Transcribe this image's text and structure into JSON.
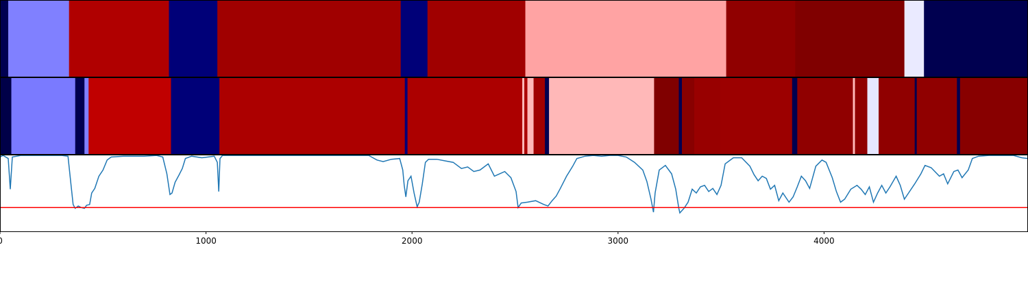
{
  "chart_data": {
    "type": "heatmap",
    "xlim": [
      0,
      4990
    ],
    "x_ticks": [
      "0",
      "1000",
      "2000",
      "3000",
      "4000"
    ],
    "x_tick_values": [
      0,
      1000,
      2000,
      3000,
      4000
    ],
    "colormap": "seismic",
    "rows": [
      {
        "segments": [
          {
            "start": 0,
            "end": 40,
            "color": "#000050"
          },
          {
            "start": 40,
            "end": 335,
            "color": "#8080ff"
          },
          {
            "start": 335,
            "end": 820,
            "color": "#b00000"
          },
          {
            "start": 820,
            "end": 1055,
            "color": "#000078"
          },
          {
            "start": 1055,
            "end": 1945,
            "color": "#a00000"
          },
          {
            "start": 1945,
            "end": 2075,
            "color": "#000078"
          },
          {
            "start": 2075,
            "end": 2550,
            "color": "#a00000"
          },
          {
            "start": 2550,
            "end": 3525,
            "color": "#ffa3a3"
          },
          {
            "start": 3525,
            "end": 3860,
            "color": "#900000"
          },
          {
            "start": 3860,
            "end": 4390,
            "color": "#800000"
          },
          {
            "start": 4390,
            "end": 4485,
            "color": "#eaeaff"
          },
          {
            "start": 4485,
            "end": 4990,
            "color": "#000050"
          }
        ]
      },
      {
        "segments": [
          {
            "start": 0,
            "end": 55,
            "color": "#000048"
          },
          {
            "start": 55,
            "end": 365,
            "color": "#7a7aff"
          },
          {
            "start": 365,
            "end": 410,
            "color": "#000050"
          },
          {
            "start": 410,
            "end": 430,
            "color": "#8080ff"
          },
          {
            "start": 430,
            "end": 830,
            "color": "#c00000"
          },
          {
            "start": 830,
            "end": 1065,
            "color": "#000078"
          },
          {
            "start": 1065,
            "end": 1965,
            "color": "#ac0000"
          },
          {
            "start": 1965,
            "end": 1978,
            "color": "#000078"
          },
          {
            "start": 1978,
            "end": 2535,
            "color": "#ac0000"
          },
          {
            "start": 2535,
            "end": 2545,
            "color": "#ffb8b8"
          },
          {
            "start": 2545,
            "end": 2560,
            "color": "#ac0000"
          },
          {
            "start": 2560,
            "end": 2590,
            "color": "#ffb8b8"
          },
          {
            "start": 2590,
            "end": 2645,
            "color": "#a00000"
          },
          {
            "start": 2645,
            "end": 2665,
            "color": "#000050"
          },
          {
            "start": 2665,
            "end": 3175,
            "color": "#ffb8b8"
          },
          {
            "start": 3175,
            "end": 3295,
            "color": "#800000"
          },
          {
            "start": 3295,
            "end": 3310,
            "color": "#000050"
          },
          {
            "start": 3310,
            "end": 3370,
            "color": "#880000"
          },
          {
            "start": 3370,
            "end": 3495,
            "color": "#980000"
          },
          {
            "start": 3495,
            "end": 3845,
            "color": "#9c0000"
          },
          {
            "start": 3845,
            "end": 3870,
            "color": "#000050"
          },
          {
            "start": 3870,
            "end": 4140,
            "color": "#900000"
          },
          {
            "start": 4140,
            "end": 4150,
            "color": "#ffb8b8"
          },
          {
            "start": 4150,
            "end": 4210,
            "color": "#900000"
          },
          {
            "start": 4210,
            "end": 4265,
            "color": "#e6e6ff"
          },
          {
            "start": 4265,
            "end": 4440,
            "color": "#900000"
          },
          {
            "start": 4440,
            "end": 4450,
            "color": "#000050"
          },
          {
            "start": 4450,
            "end": 4645,
            "color": "#900000"
          },
          {
            "start": 4645,
            "end": 4660,
            "color": "#000050"
          },
          {
            "start": 4660,
            "end": 4990,
            "color": "#880000"
          }
        ]
      }
    ],
    "line_panel": {
      "series_color": "#1f77b4",
      "threshold_color": "#ff0000",
      "ylim": [
        0,
        1
      ],
      "threshold": 0.31,
      "points": [
        [
          0,
          0.97
        ],
        [
          15,
          0.99
        ],
        [
          40,
          0.95
        ],
        [
          50,
          0.55
        ],
        [
          60,
          0.97
        ],
        [
          100,
          0.99
        ],
        [
          200,
          0.99
        ],
        [
          300,
          0.99
        ],
        [
          330,
          0.98
        ],
        [
          345,
          0.6
        ],
        [
          355,
          0.35
        ],
        [
          365,
          0.3
        ],
        [
          380,
          0.33
        ],
        [
          395,
          0.31
        ],
        [
          410,
          0.3
        ],
        [
          420,
          0.34
        ],
        [
          435,
          0.35
        ],
        [
          445,
          0.5
        ],
        [
          460,
          0.56
        ],
        [
          480,
          0.72
        ],
        [
          500,
          0.8
        ],
        [
          520,
          0.93
        ],
        [
          540,
          0.97
        ],
        [
          600,
          0.98
        ],
        [
          700,
          0.98
        ],
        [
          760,
          0.99
        ],
        [
          790,
          0.97
        ],
        [
          810,
          0.75
        ],
        [
          825,
          0.48
        ],
        [
          835,
          0.5
        ],
        [
          850,
          0.64
        ],
        [
          870,
          0.74
        ],
        [
          885,
          0.82
        ],
        [
          900,
          0.95
        ],
        [
          930,
          0.98
        ],
        [
          980,
          0.96
        ],
        [
          1040,
          0.98
        ],
        [
          1055,
          0.9
        ],
        [
          1062,
          0.52
        ],
        [
          1068,
          0.95
        ],
        [
          1080,
          0.99
        ],
        [
          1200,
          0.99
        ],
        [
          1300,
          0.99
        ],
        [
          1400,
          0.99
        ],
        [
          1500,
          0.99
        ],
        [
          1600,
          0.99
        ],
        [
          1700,
          0.99
        ],
        [
          1790,
          0.99
        ],
        [
          1810,
          0.96
        ],
        [
          1830,
          0.93
        ],
        [
          1860,
          0.91
        ],
        [
          1900,
          0.94
        ],
        [
          1940,
          0.95
        ],
        [
          1955,
          0.8
        ],
        [
          1962,
          0.6
        ],
        [
          1970,
          0.45
        ],
        [
          1980,
          0.66
        ],
        [
          1995,
          0.72
        ],
        [
          2010,
          0.5
        ],
        [
          2025,
          0.32
        ],
        [
          2035,
          0.38
        ],
        [
          2050,
          0.62
        ],
        [
          2065,
          0.9
        ],
        [
          2080,
          0.94
        ],
        [
          2120,
          0.94
        ],
        [
          2160,
          0.92
        ],
        [
          2200,
          0.9
        ],
        [
          2240,
          0.82
        ],
        [
          2270,
          0.84
        ],
        [
          2300,
          0.78
        ],
        [
          2330,
          0.8
        ],
        [
          2370,
          0.88
        ],
        [
          2400,
          0.72
        ],
        [
          2450,
          0.78
        ],
        [
          2480,
          0.7
        ],
        [
          2505,
          0.52
        ],
        [
          2515,
          0.31
        ],
        [
          2530,
          0.37
        ],
        [
          2560,
          0.38
        ],
        [
          2600,
          0.4
        ],
        [
          2640,
          0.35
        ],
        [
          2660,
          0.33
        ],
        [
          2680,
          0.4
        ],
        [
          2700,
          0.46
        ],
        [
          2720,
          0.56
        ],
        [
          2750,
          0.72
        ],
        [
          2780,
          0.85
        ],
        [
          2800,
          0.95
        ],
        [
          2840,
          0.98
        ],
        [
          2880,
          0.99
        ],
        [
          2920,
          0.98
        ],
        [
          2960,
          0.99
        ],
        [
          3000,
          0.99
        ],
        [
          3040,
          0.97
        ],
        [
          3080,
          0.9
        ],
        [
          3120,
          0.8
        ],
        [
          3140,
          0.65
        ],
        [
          3160,
          0.42
        ],
        [
          3172,
          0.25
        ],
        [
          3180,
          0.5
        ],
        [
          3200,
          0.8
        ],
        [
          3230,
          0.86
        ],
        [
          3260,
          0.75
        ],
        [
          3280,
          0.55
        ],
        [
          3295,
          0.3
        ],
        [
          3300,
          0.24
        ],
        [
          3320,
          0.3
        ],
        [
          3340,
          0.38
        ],
        [
          3360,
          0.55
        ],
        [
          3380,
          0.5
        ],
        [
          3400,
          0.58
        ],
        [
          3420,
          0.6
        ],
        [
          3440,
          0.52
        ],
        [
          3460,
          0.56
        ],
        [
          3480,
          0.48
        ],
        [
          3500,
          0.6
        ],
        [
          3520,
          0.88
        ],
        [
          3560,
          0.96
        ],
        [
          3600,
          0.96
        ],
        [
          3640,
          0.85
        ],
        [
          3660,
          0.74
        ],
        [
          3680,
          0.66
        ],
        [
          3700,
          0.72
        ],
        [
          3720,
          0.69
        ],
        [
          3740,
          0.55
        ],
        [
          3760,
          0.6
        ],
        [
          3780,
          0.4
        ],
        [
          3800,
          0.5
        ],
        [
          3830,
          0.38
        ],
        [
          3850,
          0.45
        ],
        [
          3870,
          0.58
        ],
        [
          3890,
          0.72
        ],
        [
          3910,
          0.66
        ],
        [
          3930,
          0.56
        ],
        [
          3960,
          0.85
        ],
        [
          3990,
          0.93
        ],
        [
          4010,
          0.9
        ],
        [
          4040,
          0.7
        ],
        [
          4060,
          0.52
        ],
        [
          4080,
          0.38
        ],
        [
          4100,
          0.42
        ],
        [
          4130,
          0.55
        ],
        [
          4160,
          0.6
        ],
        [
          4180,
          0.55
        ],
        [
          4200,
          0.48
        ],
        [
          4220,
          0.58
        ],
        [
          4240,
          0.38
        ],
        [
          4260,
          0.5
        ],
        [
          4280,
          0.6
        ],
        [
          4300,
          0.5
        ],
        [
          4320,
          0.58
        ],
        [
          4350,
          0.72
        ],
        [
          4370,
          0.6
        ],
        [
          4390,
          0.42
        ],
        [
          4410,
          0.5
        ],
        [
          4440,
          0.62
        ],
        [
          4470,
          0.75
        ],
        [
          4490,
          0.86
        ],
        [
          4520,
          0.83
        ],
        [
          4560,
          0.72
        ],
        [
          4580,
          0.75
        ],
        [
          4600,
          0.62
        ],
        [
          4630,
          0.78
        ],
        [
          4650,
          0.8
        ],
        [
          4670,
          0.7
        ],
        [
          4700,
          0.8
        ],
        [
          4720,
          0.95
        ],
        [
          4750,
          0.98
        ],
        [
          4800,
          0.99
        ],
        [
          4860,
          0.99
        ],
        [
          4920,
          0.99
        ],
        [
          4960,
          0.96
        ],
        [
          4990,
          0.95
        ]
      ]
    }
  }
}
